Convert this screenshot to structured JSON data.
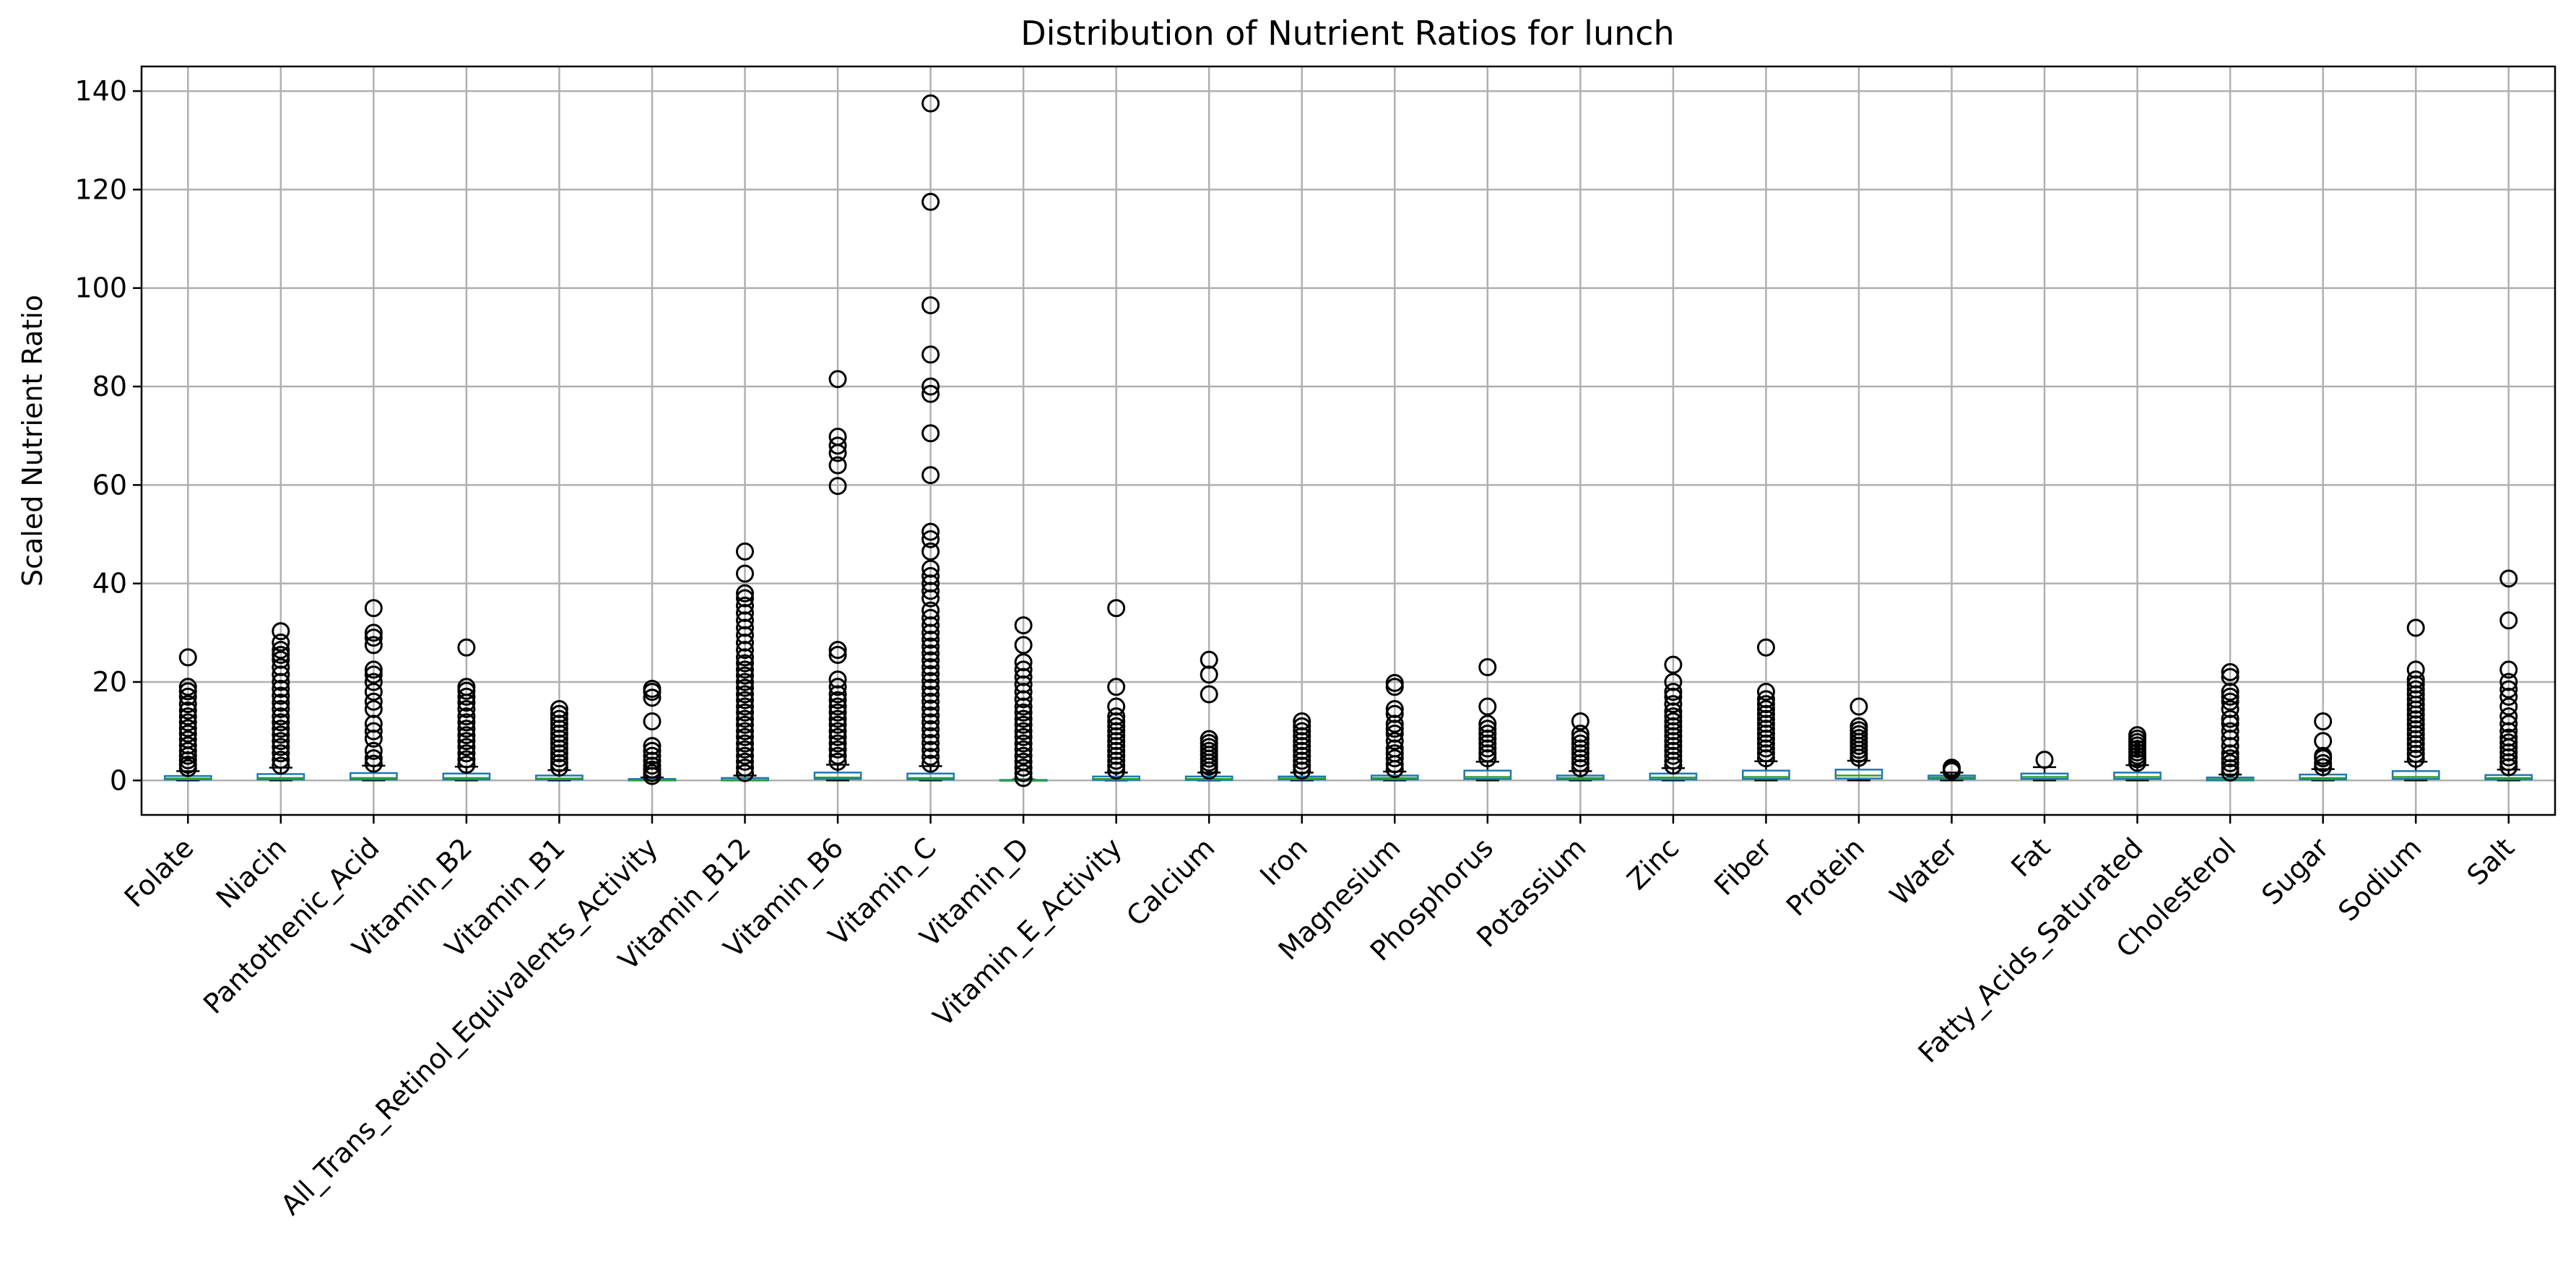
{
  "chart_data": {
    "type": "box",
    "title": "Distribution of Nutrient Ratios for lunch",
    "ylabel": "Scaled Nutrient Ratio",
    "xlabel": "",
    "ylim": [
      -7,
      145
    ],
    "yticks": [
      0,
      20,
      40,
      60,
      80,
      100,
      120,
      140
    ],
    "grid": true,
    "colors": {
      "box": "#1f77b4",
      "median": "#2ca02c",
      "whisker": "#000000",
      "flier": "#000000",
      "grid": "#b0b0b0"
    },
    "boxes": [
      {
        "label": "Folate",
        "q1": 0.2,
        "median": 0.4,
        "q3": 0.9,
        "whislo": 0.0,
        "whishi": 1.9,
        "fliers": [
          2.5,
          3.2,
          4.1,
          5.0,
          6.0,
          7.1,
          8.3,
          9.5,
          10.6,
          11.8,
          13.0,
          14.2,
          15.5,
          17.0,
          18.1,
          19.0,
          25.0
        ]
      },
      {
        "label": "Niacin",
        "q1": 0.2,
        "median": 0.5,
        "q3": 1.3,
        "whislo": 0.0,
        "whishi": 2.6,
        "fliers": [
          3.0,
          4.2,
          5.5,
          6.8,
          8.0,
          9.3,
          10.5,
          11.8,
          13.0,
          14.5,
          15.8,
          17.2,
          18.6,
          20.0,
          21.5,
          23.0,
          24.5,
          25.5,
          26.5,
          28.0,
          30.3
        ]
      },
      {
        "label": "Pantothenic_Acid",
        "q1": 0.2,
        "median": 0.5,
        "q3": 1.5,
        "whislo": 0.0,
        "whishi": 3.0,
        "fliers": [
          3.4,
          4.5,
          6.0,
          8.5,
          10.0,
          11.5,
          14.5,
          16.0,
          18.0,
          20.0,
          21.5,
          22.5,
          27.5,
          29.0,
          30.0,
          35.0
        ]
      },
      {
        "label": "Vitamin_B2",
        "q1": 0.2,
        "median": 0.5,
        "q3": 1.4,
        "whislo": 0.0,
        "whishi": 2.8,
        "fliers": [
          3.2,
          4.3,
          5.5,
          6.8,
          8.0,
          9.2,
          10.5,
          11.8,
          13.0,
          14.5,
          15.8,
          17.0,
          18.2,
          19.0,
          27.0
        ]
      },
      {
        "label": "Vitamin_B1",
        "q1": 0.2,
        "median": 0.4,
        "q3": 1.0,
        "whislo": 0.0,
        "whishi": 2.1,
        "fliers": [
          2.6,
          3.5,
          4.5,
          5.5,
          6.5,
          7.5,
          8.5,
          9.5,
          10.5,
          11.5,
          12.5,
          13.5,
          14.5
        ]
      },
      {
        "label": "All_Trans_Retinol_Equivalents_Activity",
        "q1": 0.0,
        "median": 0.1,
        "q3": 0.3,
        "whislo": 0.0,
        "whishi": 0.6,
        "fliers": [
          0.9,
          1.5,
          2.2,
          3.0,
          4.0,
          5.0,
          6.0,
          7.0,
          12.0,
          16.8,
          18.0,
          18.6
        ]
      },
      {
        "label": "Vitamin_B12",
        "q1": 0.0,
        "median": 0.1,
        "q3": 0.5,
        "whislo": 0.0,
        "whishi": 1.0,
        "fliers": [
          1.5,
          2.6,
          3.8,
          5.0,
          6.3,
          7.5,
          8.8,
          10.0,
          11.3,
          12.5,
          13.8,
          15.0,
          16.3,
          17.5,
          18.8,
          20.0,
          21.3,
          22.5,
          23.8,
          25.0,
          26.5,
          28.0,
          29.5,
          31.0,
          32.5,
          34.0,
          35.5,
          37.0,
          38.0,
          42.0,
          46.5
        ]
      },
      {
        "label": "Vitamin_B6",
        "q1": 0.3,
        "median": 0.6,
        "q3": 1.6,
        "whislo": 0.0,
        "whishi": 3.2,
        "fliers": [
          3.8,
          5.0,
          6.3,
          7.5,
          8.8,
          10.0,
          11.3,
          12.5,
          13.8,
          15.0,
          16.3,
          17.5,
          19.0,
          20.5,
          25.5,
          26.5,
          59.8,
          64.0,
          66.5,
          68.0,
          69.8,
          81.5
        ]
      },
      {
        "label": "Vitamin_C",
        "q1": 0.2,
        "median": 0.5,
        "q3": 1.4,
        "whislo": 0.0,
        "whishi": 2.9,
        "fliers": [
          3.4,
          4.8,
          6.2,
          7.6,
          9.0,
          10.4,
          11.8,
          13.2,
          14.6,
          16.0,
          17.4,
          18.8,
          20.2,
          21.6,
          23.0,
          24.4,
          25.8,
          27.2,
          28.6,
          30.0,
          31.5,
          33.0,
          34.5,
          37.0,
          38.5,
          40.0,
          41.5,
          43.0,
          46.5,
          49.0,
          50.5,
          62.0,
          70.5,
          78.5,
          80.0,
          86.5,
          96.5,
          117.5,
          137.5
        ]
      },
      {
        "label": "Vitamin_D",
        "q1": 0.0,
        "median": 0.0,
        "q3": 0.1,
        "whislo": 0.0,
        "whishi": 0.2,
        "fliers": [
          0.5,
          1.5,
          2.6,
          3.8,
          5.0,
          6.3,
          7.5,
          8.8,
          10.0,
          11.3,
          12.5,
          13.8,
          15.0,
          16.5,
          18.0,
          19.5,
          21.0,
          22.5,
          24.0,
          27.5,
          31.5
        ]
      },
      {
        "label": "Vitamin_E_Activity",
        "q1": 0.1,
        "median": 0.3,
        "q3": 0.8,
        "whislo": 0.0,
        "whishi": 1.6,
        "fliers": [
          2.0,
          3.0,
          4.0,
          5.0,
          6.0,
          7.0,
          8.0,
          9.0,
          10.0,
          11.0,
          12.0,
          13.0,
          15.0,
          19.0,
          35.0
        ]
      },
      {
        "label": "Calcium",
        "q1": 0.1,
        "median": 0.3,
        "q3": 0.8,
        "whislo": 0.0,
        "whishi": 1.6,
        "fliers": [
          2.0,
          2.8,
          3.6,
          4.4,
          5.2,
          6.0,
          6.8,
          7.6,
          8.4,
          17.5,
          21.5,
          24.5
        ]
      },
      {
        "label": "Iron",
        "q1": 0.2,
        "median": 0.4,
        "q3": 0.8,
        "whislo": 0.0,
        "whishi": 1.6,
        "fliers": [
          2.0,
          3.0,
          4.0,
          5.0,
          6.0,
          7.0,
          8.0,
          9.0,
          10.0,
          11.0,
          12.0
        ]
      },
      {
        "label": "Magnesium",
        "q1": 0.2,
        "median": 0.5,
        "q3": 1.0,
        "whislo": 0.0,
        "whishi": 1.8,
        "fliers": [
          2.3,
          3.3,
          4.5,
          5.5,
          6.5,
          8.0,
          9.5,
          10.5,
          11.5,
          13.5,
          14.5,
          19.0,
          19.8
        ]
      },
      {
        "label": "Phosphorus",
        "q1": 0.3,
        "median": 0.7,
        "q3": 2.0,
        "whislo": 0.0,
        "whishi": 3.8,
        "fliers": [
          4.5,
          5.5,
          6.5,
          7.5,
          8.5,
          9.5,
          10.5,
          11.5,
          15.0,
          23.0
        ]
      },
      {
        "label": "Potassium",
        "q1": 0.2,
        "median": 0.5,
        "q3": 1.0,
        "whislo": 0.0,
        "whishi": 1.9,
        "fliers": [
          2.5,
          3.5,
          4.5,
          5.5,
          6.5,
          7.5,
          8.5,
          9.5,
          12.0
        ]
      },
      {
        "label": "Zinc",
        "q1": 0.2,
        "median": 0.6,
        "q3": 1.4,
        "whislo": 0.0,
        "whishi": 2.5,
        "fliers": [
          3.0,
          4.0,
          5.0,
          6.0,
          7.0,
          8.0,
          9.0,
          10.0,
          11.0,
          12.0,
          13.0,
          14.0,
          15.5,
          17.0,
          18.0,
          20.0,
          23.5
        ]
      },
      {
        "label": "Fiber",
        "q1": 0.3,
        "median": 0.7,
        "q3": 2.0,
        "whislo": 0.0,
        "whishi": 3.9,
        "fliers": [
          4.5,
          5.5,
          6.5,
          7.5,
          8.5,
          9.5,
          10.5,
          11.5,
          12.5,
          13.5,
          14.5,
          15.5,
          16.5,
          18.0,
          27.0
        ]
      },
      {
        "label": "Protein",
        "q1": 0.4,
        "median": 1.0,
        "q3": 2.2,
        "whislo": 0.0,
        "whishi": 4.0,
        "fliers": [
          4.6,
          5.4,
          6.2,
          7.0,
          7.8,
          8.6,
          9.4,
          10.2,
          11.0,
          15.0
        ]
      },
      {
        "label": "Water",
        "q1": 0.3,
        "median": 0.6,
        "q3": 1.0,
        "whislo": 0.0,
        "whishi": 1.6,
        "fliers": [
          1.9,
          2.3,
          2.6
        ]
      },
      {
        "label": "Fat",
        "q1": 0.3,
        "median": 0.7,
        "q3": 1.4,
        "whislo": 0.0,
        "whishi": 2.7,
        "fliers": [
          4.2
        ]
      },
      {
        "label": "Fatty_Acids_Saturated",
        "q1": 0.3,
        "median": 0.7,
        "q3": 1.6,
        "whislo": 0.0,
        "whishi": 3.1,
        "fliers": [
          3.6,
          4.3,
          5.0,
          5.7,
          6.4,
          7.1,
          7.8,
          8.5,
          9.2
        ]
      },
      {
        "label": "Cholesterol",
        "q1": 0.0,
        "median": 0.2,
        "q3": 0.6,
        "whislo": 0.0,
        "whishi": 1.2,
        "fliers": [
          1.6,
          2.5,
          3.5,
          4.5,
          5.5,
          7.0,
          8.5,
          10.0,
          11.5,
          12.5,
          14.5,
          16.0,
          17.0,
          18.0,
          21.0,
          22.0
        ]
      },
      {
        "label": "Sugar",
        "q1": 0.2,
        "median": 0.5,
        "q3": 1.2,
        "whislo": 0.0,
        "whishi": 2.3,
        "fliers": [
          2.7,
          3.5,
          4.5,
          5.0,
          8.0,
          12.0
        ]
      },
      {
        "label": "Sodium",
        "q1": 0.3,
        "median": 0.7,
        "q3": 1.9,
        "whislo": 0.0,
        "whishi": 3.8,
        "fliers": [
          4.4,
          5.4,
          6.4,
          7.4,
          8.4,
          9.4,
          10.4,
          11.4,
          12.4,
          13.4,
          14.4,
          15.4,
          16.5,
          17.5,
          18.5,
          19.5,
          20.5,
          22.5,
          31.0
        ]
      },
      {
        "label": "Salt",
        "q1": 0.2,
        "median": 0.5,
        "q3": 1.1,
        "whislo": 0.0,
        "whishi": 2.2,
        "fliers": [
          2.7,
          3.7,
          4.7,
          5.7,
          6.7,
          7.7,
          8.7,
          10.0,
          11.5,
          13.0,
          15.0,
          17.0,
          18.5,
          20.0,
          22.5,
          32.5,
          41.0
        ]
      }
    ]
  }
}
